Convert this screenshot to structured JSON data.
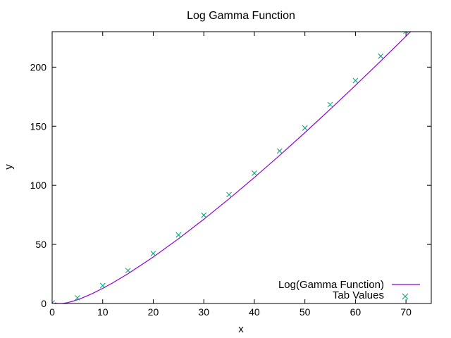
{
  "chart_data": {
    "type": "line",
    "title": "Log Gamma Function",
    "xlabel": "x",
    "ylabel": "y",
    "xlim": [
      0,
      75
    ],
    "ylim": [
      0,
      230
    ],
    "xticks": [
      0,
      10,
      20,
      30,
      40,
      50,
      60,
      70
    ],
    "yticks": [
      0,
      50,
      100,
      150,
      200
    ],
    "grid": false,
    "legend_position": "bottom-right",
    "series": [
      {
        "name": "Log(Gamma Function)",
        "style": "line",
        "color": "#9400d3",
        "x": [
          0.5,
          1,
          2,
          3,
          4,
          5,
          6,
          8,
          10,
          12,
          15,
          20,
          25,
          30,
          35,
          40,
          45,
          50,
          55,
          60,
          65,
          70,
          72
        ],
        "y": [
          0.57,
          0,
          0,
          0.69,
          1.79,
          3.18,
          4.79,
          8.53,
          12.8,
          17.5,
          25.19,
          39.34,
          54.78,
          71.26,
          88.58,
          106.63,
          125.32,
          144.57,
          164.32,
          184.53,
          205.17,
          226.19,
          234.7
        ]
      },
      {
        "name": "Tab Values",
        "style": "points",
        "marker": "x",
        "color": "#009e73",
        "x": [
          0,
          5,
          10,
          15,
          20,
          25,
          30,
          35,
          40,
          45,
          50,
          55,
          60,
          65,
          70
        ],
        "y": [
          0.5,
          4.8,
          15.1,
          27.9,
          42.3,
          58.0,
          74.7,
          92.1,
          110.3,
          129.1,
          148.5,
          168.3,
          188.6,
          209.3,
          230.4
        ]
      }
    ]
  }
}
